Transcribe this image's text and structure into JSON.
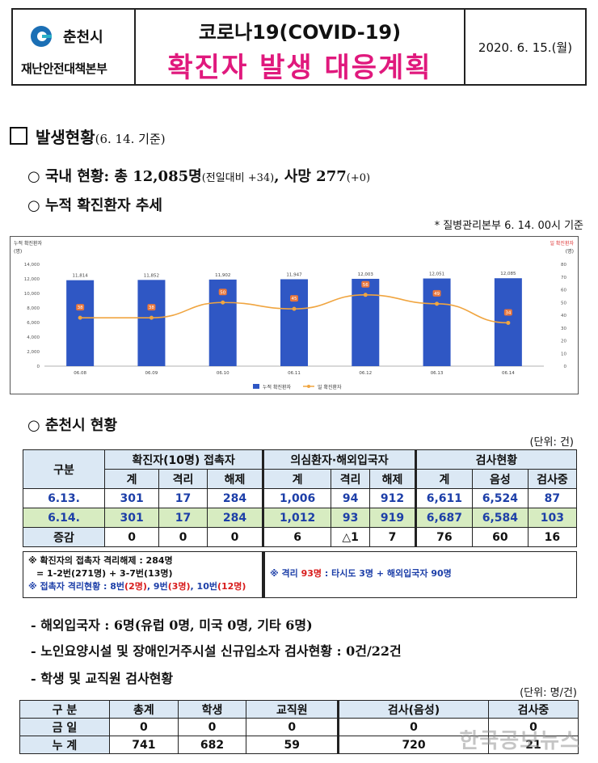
{
  "header": {
    "city": "춘천시",
    "hq": "재난안전대책본부",
    "title_top": "코로나19(COVID-19)",
    "title_main": "확진자 발생 대응계획",
    "date": "2020. 6. 15.(월)"
  },
  "section1": {
    "title": "발생현황",
    "sub": "(6. 14. 기준)"
  },
  "domestic": {
    "label": "국내 현황: 총 12,085명",
    "diff": "(전일대비 +34)",
    "deaths": ", 사망 277",
    "deaths_diff": "(+0)"
  },
  "trend_title": "누적 확진환자 추세",
  "source_note": "* 질병관리본부 6. 14. 00시 기준",
  "chart_data": {
    "type": "bar",
    "title": "",
    "left_axis_title": "누적 확진환자",
    "left_axis_unit": "(명)",
    "right_axis_title": "일 확진환자",
    "right_axis_unit": "(명)",
    "categories": [
      "06.08",
      "06.09",
      "06.10",
      "06.11",
      "06.12",
      "06.13",
      "06.14"
    ],
    "ylim": [
      0,
      14000
    ],
    "yticks": [
      "0",
      "2,000",
      "4,000",
      "6,000",
      "8,000",
      "10,000",
      "12,000",
      "14,000"
    ],
    "y2lim": [
      0,
      80
    ],
    "y2ticks": [
      "0",
      "10",
      "20",
      "30",
      "40",
      "50",
      "60",
      "70",
      "80"
    ],
    "series": [
      {
        "name": "누적 확진환자",
        "kind": "bar",
        "values": [
          11814,
          11852,
          11902,
          11947,
          12003,
          12051,
          12085
        ],
        "labels": [
          "11,814",
          "11,852",
          "11,902",
          "11,947",
          "12,003",
          "12,051",
          "12,085"
        ]
      },
      {
        "name": "일 확진환자",
        "kind": "line",
        "axis": "right",
        "values": [
          38,
          38,
          50,
          45,
          56,
          49,
          34
        ],
        "labels": [
          "38",
          "38",
          "50",
          "45",
          "56",
          "49",
          "34"
        ]
      }
    ],
    "colors": {
      "bar": "#2f57c4",
      "line": "#f0a540",
      "marker": "#f0a540",
      "label_bg": "#e8763c"
    }
  },
  "section_chuncheon": {
    "title": "춘천시 현황",
    "unit": "(단위: 건)"
  },
  "table1": {
    "group_headers": [
      "구분",
      "확진자(10명) 접촉자",
      "의심환자·해외입국자",
      "검사현황"
    ],
    "sub_headers": [
      "계",
      "격리",
      "해제",
      "계",
      "격리",
      "해제",
      "계",
      "음성",
      "검사중"
    ],
    "rows": [
      {
        "label": "6.13.",
        "cells": [
          "301",
          "17",
          "284",
          "1,006",
          "94",
          "912",
          "6,611",
          "6,524",
          "87"
        ]
      },
      {
        "label": "6.14.",
        "cells": [
          "301",
          "17",
          "284",
          "1,012",
          "93",
          "919",
          "6,687",
          "6,584",
          "103"
        ]
      },
      {
        "label": "증감",
        "cells": [
          "0",
          "0",
          "0",
          "6",
          "△1",
          "7",
          "76",
          "60",
          "16"
        ]
      }
    ]
  },
  "notes_left": {
    "line1": "※ 확진자의 접촉자 격리해제 : 284명",
    "line2": "= 1-2번(271명) + 3-7번(13명)",
    "line3_prefix": "※ 접촉자 격리현황 : ",
    "n8": "8번",
    "n8c": "(2명)",
    "n9": ", 9번",
    "n9c": "(3명)",
    "n10": ", 10번",
    "n10c": "(12명)"
  },
  "notes_right": {
    "prefix": "※ 격리 ",
    "count": "93명",
    "rest": " : 타시도 3명 + 해외입국자 90명"
  },
  "bullets": [
    "- 해외입국자 : 6명(유럽 0명, 미국 0명, 기타 6명)",
    "- 노인요양시설 및 장애인거주시설 신규입소자 검사현황 : 0건/22건",
    "- 학생 및 교직원 검사현황"
  ],
  "table2": {
    "unit": "(단위: 명/건)",
    "headers": [
      "구 분",
      "총계",
      "학생",
      "교직원",
      "검사(음성)",
      "검사중"
    ],
    "rows": [
      [
        "금 일",
        "0",
        "0",
        "0",
        "0",
        "0"
      ],
      [
        "누 계",
        "741",
        "682",
        "59",
        "720",
        "21"
      ]
    ]
  },
  "watermark": "한국공보뉴스"
}
